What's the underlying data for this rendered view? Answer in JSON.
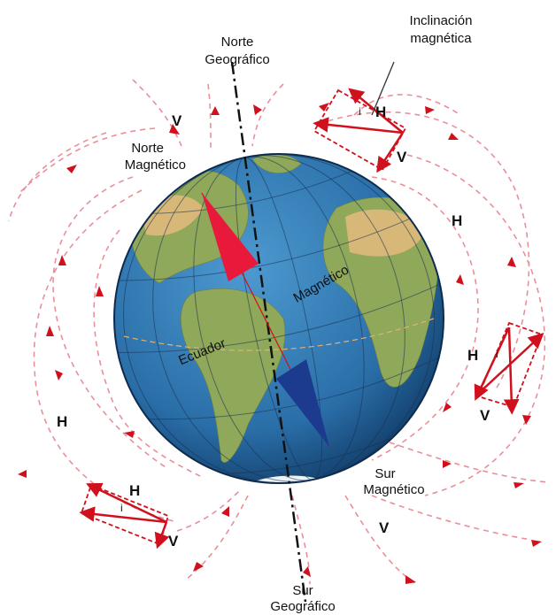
{
  "labels": {
    "inclinacion": [
      "Inclinación",
      "magnética"
    ],
    "norte_geografico": [
      "Norte",
      "Geográfico"
    ],
    "norte_magnetico": [
      "Norte",
      "Magnético"
    ],
    "sur_magnetico": [
      "Sur",
      "Magnético"
    ],
    "sur_geografico": [
      "Sur",
      "Geográfico"
    ],
    "magnetico": "Magnético",
    "ecuador": "Ecuador"
  },
  "vectors": [
    {
      "h": "H",
      "v": "V",
      "i": "i"
    },
    {
      "h": "H",
      "v": "V",
      "i": "i"
    },
    {
      "h": "H",
      "v": "V",
      "i": "i"
    }
  ],
  "field_labels": [
    "H",
    "H",
    "V",
    "V"
  ]
}
